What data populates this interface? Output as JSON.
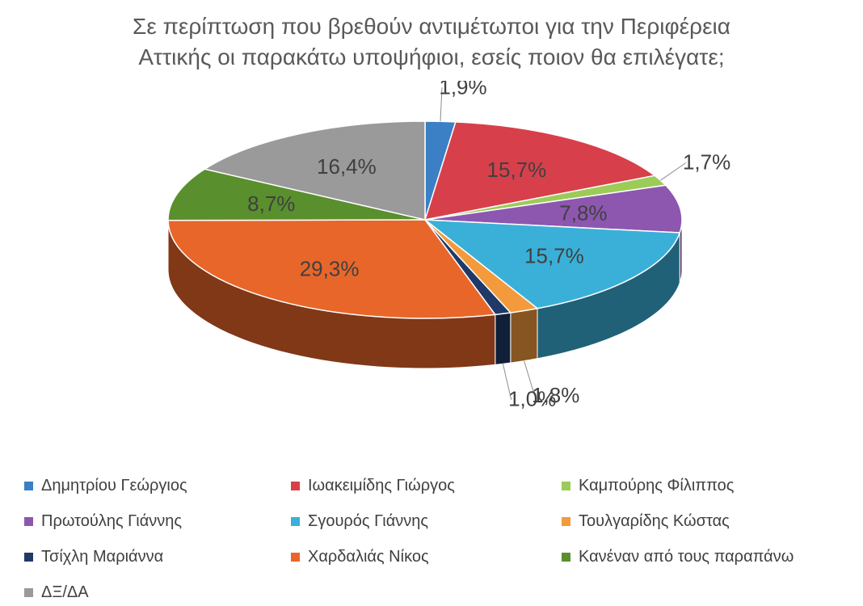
{
  "title": {
    "line1": "Σε περίπτωση που βρεθούν αντιμέτωποι για την Περιφέρεια",
    "line2": "Αττικής οι παρακάτω υποψήφιοι, εσείς ποιον θα επιλέγατε;"
  },
  "chart_data": {
    "type": "pie",
    "style": "3d",
    "legend_position": "bottom",
    "title": "Σε περίπτωση που βρεθούν αντιμέτωποι για την Περιφέρεια Αττικής οι παρακάτω υποψήφιοι, εσείς ποιον θα επιλέγατε;",
    "slices": [
      {
        "label": "Δημητρίου Γεώργιος",
        "value": 1.9,
        "value_label": "1,9%",
        "color": "#3b7fc4"
      },
      {
        "label": "Ιωακειμίδης Γιώργος",
        "value": 15.7,
        "value_label": "15,7%",
        "color": "#d7404a"
      },
      {
        "label": "Καμπούρης Φίλιππος",
        "value": 1.7,
        "value_label": "1,7%",
        "color": "#9ccb58"
      },
      {
        "label": "Πρωτούλης Γιάννης",
        "value": 7.8,
        "value_label": "7,8%",
        "color": "#8d57b0"
      },
      {
        "label": "Σγουρός Γιάννης",
        "value": 15.7,
        "value_label": "15,7%",
        "color": "#3ab0d8"
      },
      {
        "label": "Τουλγαρίδης Κώστας",
        "value": 1.8,
        "value_label": "1,8%",
        "color": "#f39a3c"
      },
      {
        "label": "Τσίχλη Μαριάννα",
        "value": 1.0,
        "value_label": "1,0%",
        "color": "#1f3a68"
      },
      {
        "label": "Χαρδαλιάς Νίκος",
        "value": 29.3,
        "value_label": "29,3%",
        "color": "#e8662a"
      },
      {
        "label": "Κανέναν από τους παραπάνω",
        "value": 8.7,
        "value_label": "8,7%",
        "color": "#5a8f2e"
      },
      {
        "label": "ΔΞ/ΔΑ",
        "value": 16.4,
        "value_label": "16,4%",
        "color": "#9a9a9a"
      }
    ]
  }
}
